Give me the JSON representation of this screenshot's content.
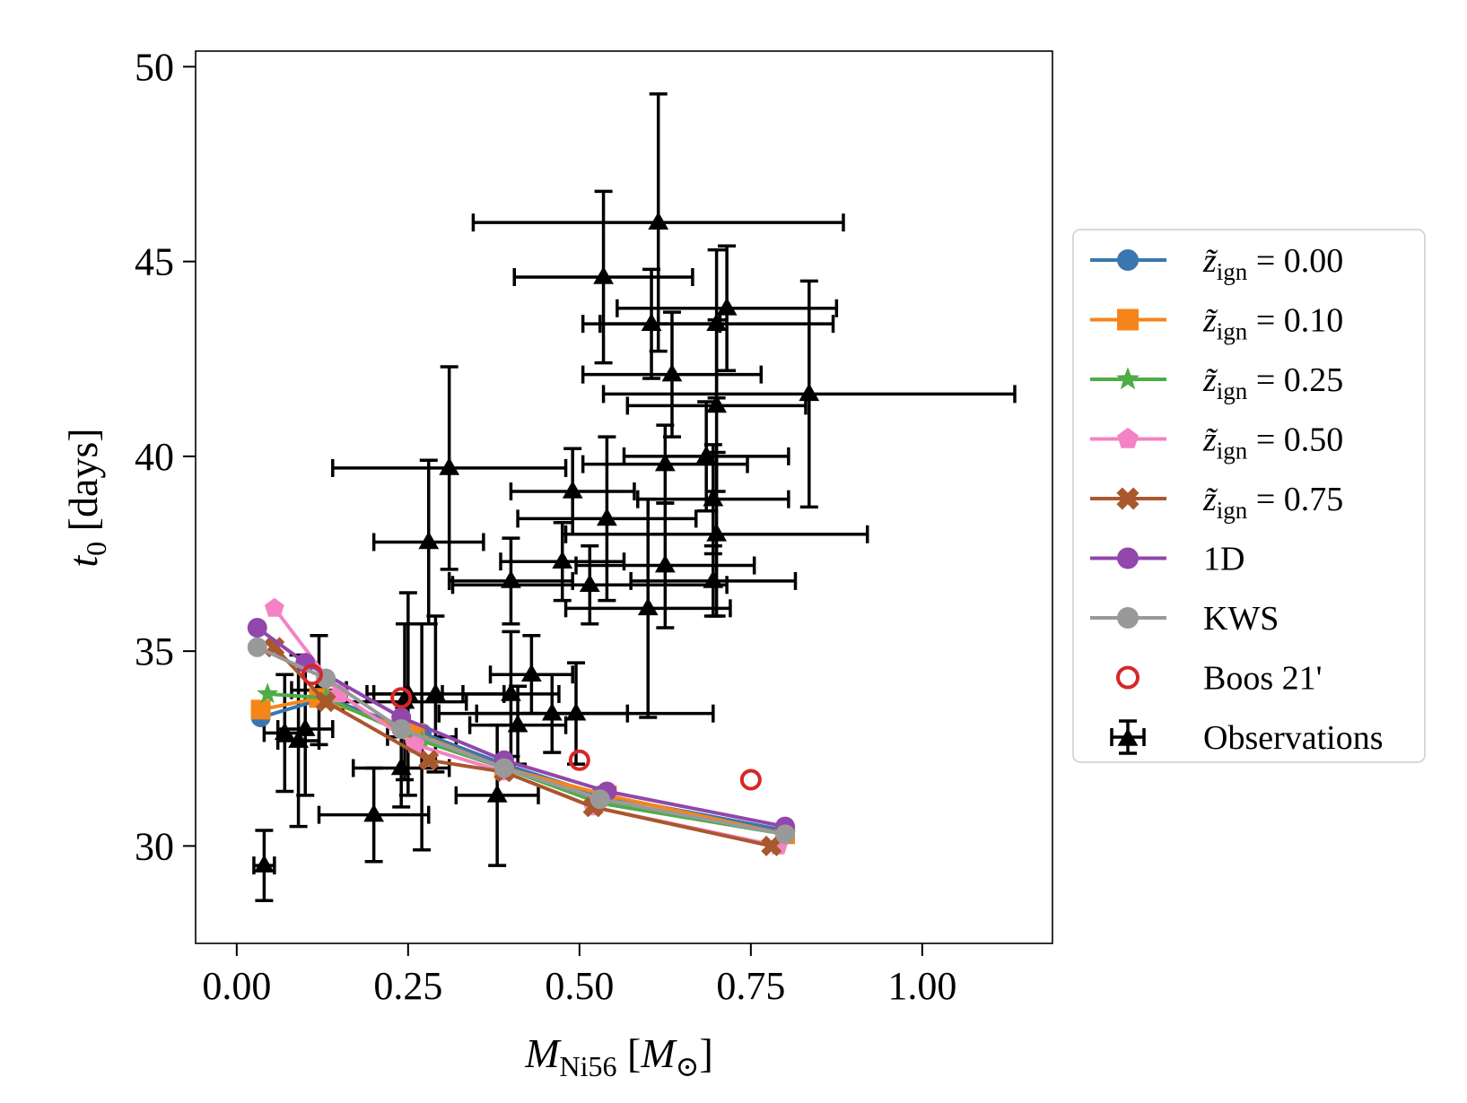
{
  "chart_data": {
    "type": "scatter",
    "title": "",
    "xlabel": "M_Ni56 [M_⊙]",
    "ylabel": "t0 [days]",
    "xlim": [
      -0.06,
      1.19
    ],
    "ylim": [
      27.5,
      50.4
    ],
    "xticks": [
      0.0,
      0.25,
      0.5,
      0.75,
      1.0
    ],
    "xtick_labels": [
      "0.00",
      "0.25",
      "0.50",
      "0.75",
      "1.00"
    ],
    "yticks": [
      30,
      35,
      40,
      45,
      50
    ],
    "ytick_labels": [
      "30",
      "35",
      "40",
      "45",
      "50"
    ],
    "legend_position": "right",
    "models": [
      {
        "name": "z̃ign = 0.00",
        "sub": "ign",
        "value": "= 0.00",
        "color": "#3a76b0",
        "marker": "circle",
        "x": [
          0.035,
          0.13,
          0.27,
          0.39,
          0.53,
          0.8
        ],
        "y": [
          33.3,
          33.8,
          32.9,
          32.1,
          31.3,
          30.4
        ]
      },
      {
        "name": "z̃ign = 0.10",
        "sub": "ign",
        "value": "= 0.10",
        "color": "#f58518",
        "marker": "square",
        "x": [
          0.035,
          0.12,
          0.26,
          0.39,
          0.54,
          0.8
        ],
        "y": [
          33.5,
          33.8,
          32.9,
          32.0,
          31.3,
          30.3
        ]
      },
      {
        "name": "z̃ign = 0.25",
        "sub": "ign",
        "value": "= 0.25",
        "color": "#4fac47",
        "marker": "star",
        "x": [
          0.045,
          0.13,
          0.27,
          0.39,
          0.53,
          0.8
        ],
        "y": [
          33.9,
          33.8,
          32.7,
          32.0,
          31.1,
          30.3
        ]
      },
      {
        "name": "z̃ign = 0.50",
        "sub": "ign",
        "value": "= 0.50",
        "color": "#f383c4",
        "marker": "pentagon",
        "x": [
          0.055,
          0.15,
          0.26,
          0.39,
          0.52,
          0.79
        ],
        "y": [
          36.1,
          33.9,
          32.6,
          31.9,
          31.0,
          30.0
        ]
      },
      {
        "name": "z̃ign = 0.75",
        "sub": "ign",
        "value": "= 0.75",
        "color": "#a9572d",
        "marker": "x",
        "x": [
          0.055,
          0.13,
          0.28,
          0.39,
          0.52,
          0.78
        ],
        "y": [
          35.1,
          33.7,
          32.2,
          31.9,
          31.0,
          30.0
        ]
      },
      {
        "name": "1D",
        "color": "#9147ab",
        "marker": "circle",
        "x": [
          0.03,
          0.1,
          0.24,
          0.39,
          0.54,
          0.8
        ],
        "y": [
          35.6,
          34.7,
          33.3,
          32.2,
          31.4,
          30.5
        ]
      },
      {
        "name": "KWS",
        "color": "#999999",
        "marker": "circle",
        "x": [
          0.03,
          0.13,
          0.24,
          0.39,
          0.53,
          0.8
        ],
        "y": [
          35.1,
          34.3,
          33.0,
          32.0,
          31.2,
          30.3
        ]
      }
    ],
    "boos": {
      "name": "Boos 21'",
      "color": "#d62728",
      "x": [
        0.11,
        0.24,
        0.5,
        0.75
      ],
      "y": [
        34.4,
        33.8,
        32.2,
        31.7
      ]
    },
    "observations": {
      "name": "Observations",
      "color": "#000000",
      "points": [
        {
          "x": 0.615,
          "y": 46.0,
          "xerr": 0.27,
          "yerr": 3.3
        },
        {
          "x": 0.535,
          "y": 44.6,
          "xerr": 0.13,
          "yerr": 2.2
        },
        {
          "x": 0.715,
          "y": 43.8,
          "xerr": 0.16,
          "yerr": 1.6
        },
        {
          "x": 0.605,
          "y": 43.4,
          "xerr": 0.1,
          "yerr": 1.4
        },
        {
          "x": 0.7,
          "y": 43.4,
          "xerr": 0.17,
          "yerr": 1.9
        },
        {
          "x": 0.635,
          "y": 42.1,
          "xerr": 0.13,
          "yerr": 1.6
        },
        {
          "x": 0.835,
          "y": 41.6,
          "xerr": 0.3,
          "yerr": 2.9
        },
        {
          "x": 0.7,
          "y": 41.3,
          "xerr": 0.13,
          "yerr": 2.2
        },
        {
          "x": 0.31,
          "y": 39.7,
          "xerr": 0.17,
          "yerr": 2.6
        },
        {
          "x": 0.625,
          "y": 39.8,
          "xerr": 0.12,
          "yerr": 1.0
        },
        {
          "x": 0.685,
          "y": 40.0,
          "xerr": 0.12,
          "yerr": 1.4
        },
        {
          "x": 0.49,
          "y": 39.1,
          "xerr": 0.09,
          "yerr": 1.1
        },
        {
          "x": 0.54,
          "y": 38.4,
          "xerr": 0.13,
          "yerr": 2.1
        },
        {
          "x": 0.695,
          "y": 38.9,
          "xerr": 0.11,
          "yerr": 1.4
        },
        {
          "x": 0.28,
          "y": 37.8,
          "xerr": 0.08,
          "yerr": 2.1
        },
        {
          "x": 0.475,
          "y": 37.3,
          "xerr": 0.09,
          "yerr": 1.0
        },
        {
          "x": 0.7,
          "y": 38.0,
          "xerr": 0.22,
          "yerr": 2.1
        },
        {
          "x": 0.625,
          "y": 37.2,
          "xerr": 0.13,
          "yerr": 1.6
        },
        {
          "x": 0.4,
          "y": 36.8,
          "xerr": 0.09,
          "yerr": 1.1
        },
        {
          "x": 0.515,
          "y": 36.7,
          "xerr": 0.2,
          "yerr": 1.0
        },
        {
          "x": 0.6,
          "y": 36.1,
          "xerr": 0.12,
          "yerr": 2.8
        },
        {
          "x": 0.695,
          "y": 36.8,
          "xerr": 0.12,
          "yerr": 0.9
        },
        {
          "x": 0.43,
          "y": 34.4,
          "xerr": 0.06,
          "yerr": 1.0
        },
        {
          "x": 0.495,
          "y": 33.4,
          "xerr": 0.2,
          "yerr": 1.3
        },
        {
          "x": 0.4,
          "y": 33.9,
          "xerr": 0.07,
          "yerr": 1.6
        },
        {
          "x": 0.46,
          "y": 33.4,
          "xerr": 0.11,
          "yerr": 1.0
        },
        {
          "x": 0.41,
          "y": 33.1,
          "xerr": 0.07,
          "yerr": 1.0
        },
        {
          "x": 0.25,
          "y": 33.9,
          "xerr": 0.05,
          "yerr": 2.6
        },
        {
          "x": 0.29,
          "y": 33.9,
          "xerr": 0.1,
          "yerr": 2.0
        },
        {
          "x": 0.245,
          "y": 33.7,
          "xerr": 0.09,
          "yerr": 2.0
        },
        {
          "x": 0.27,
          "y": 32.8,
          "xerr": 0.05,
          "yerr": 2.9
        },
        {
          "x": 0.24,
          "y": 32.0,
          "xerr": 0.07,
          "yerr": 1.0
        },
        {
          "x": 0.1,
          "y": 33.0,
          "xerr": 0.04,
          "yerr": 1.7
        },
        {
          "x": 0.07,
          "y": 32.9,
          "xerr": 0.03,
          "yerr": 1.5
        },
        {
          "x": 0.09,
          "y": 32.7,
          "xerr": 0.03,
          "yerr": 2.2
        },
        {
          "x": 0.12,
          "y": 34.0,
          "xerr": 0.04,
          "yerr": 1.4
        },
        {
          "x": 0.38,
          "y": 31.3,
          "xerr": 0.06,
          "yerr": 1.8
        },
        {
          "x": 0.2,
          "y": 30.8,
          "xerr": 0.08,
          "yerr": 1.2
        },
        {
          "x": 0.04,
          "y": 29.5,
          "xerr": 0.015,
          "yerr": 0.9
        }
      ]
    }
  }
}
